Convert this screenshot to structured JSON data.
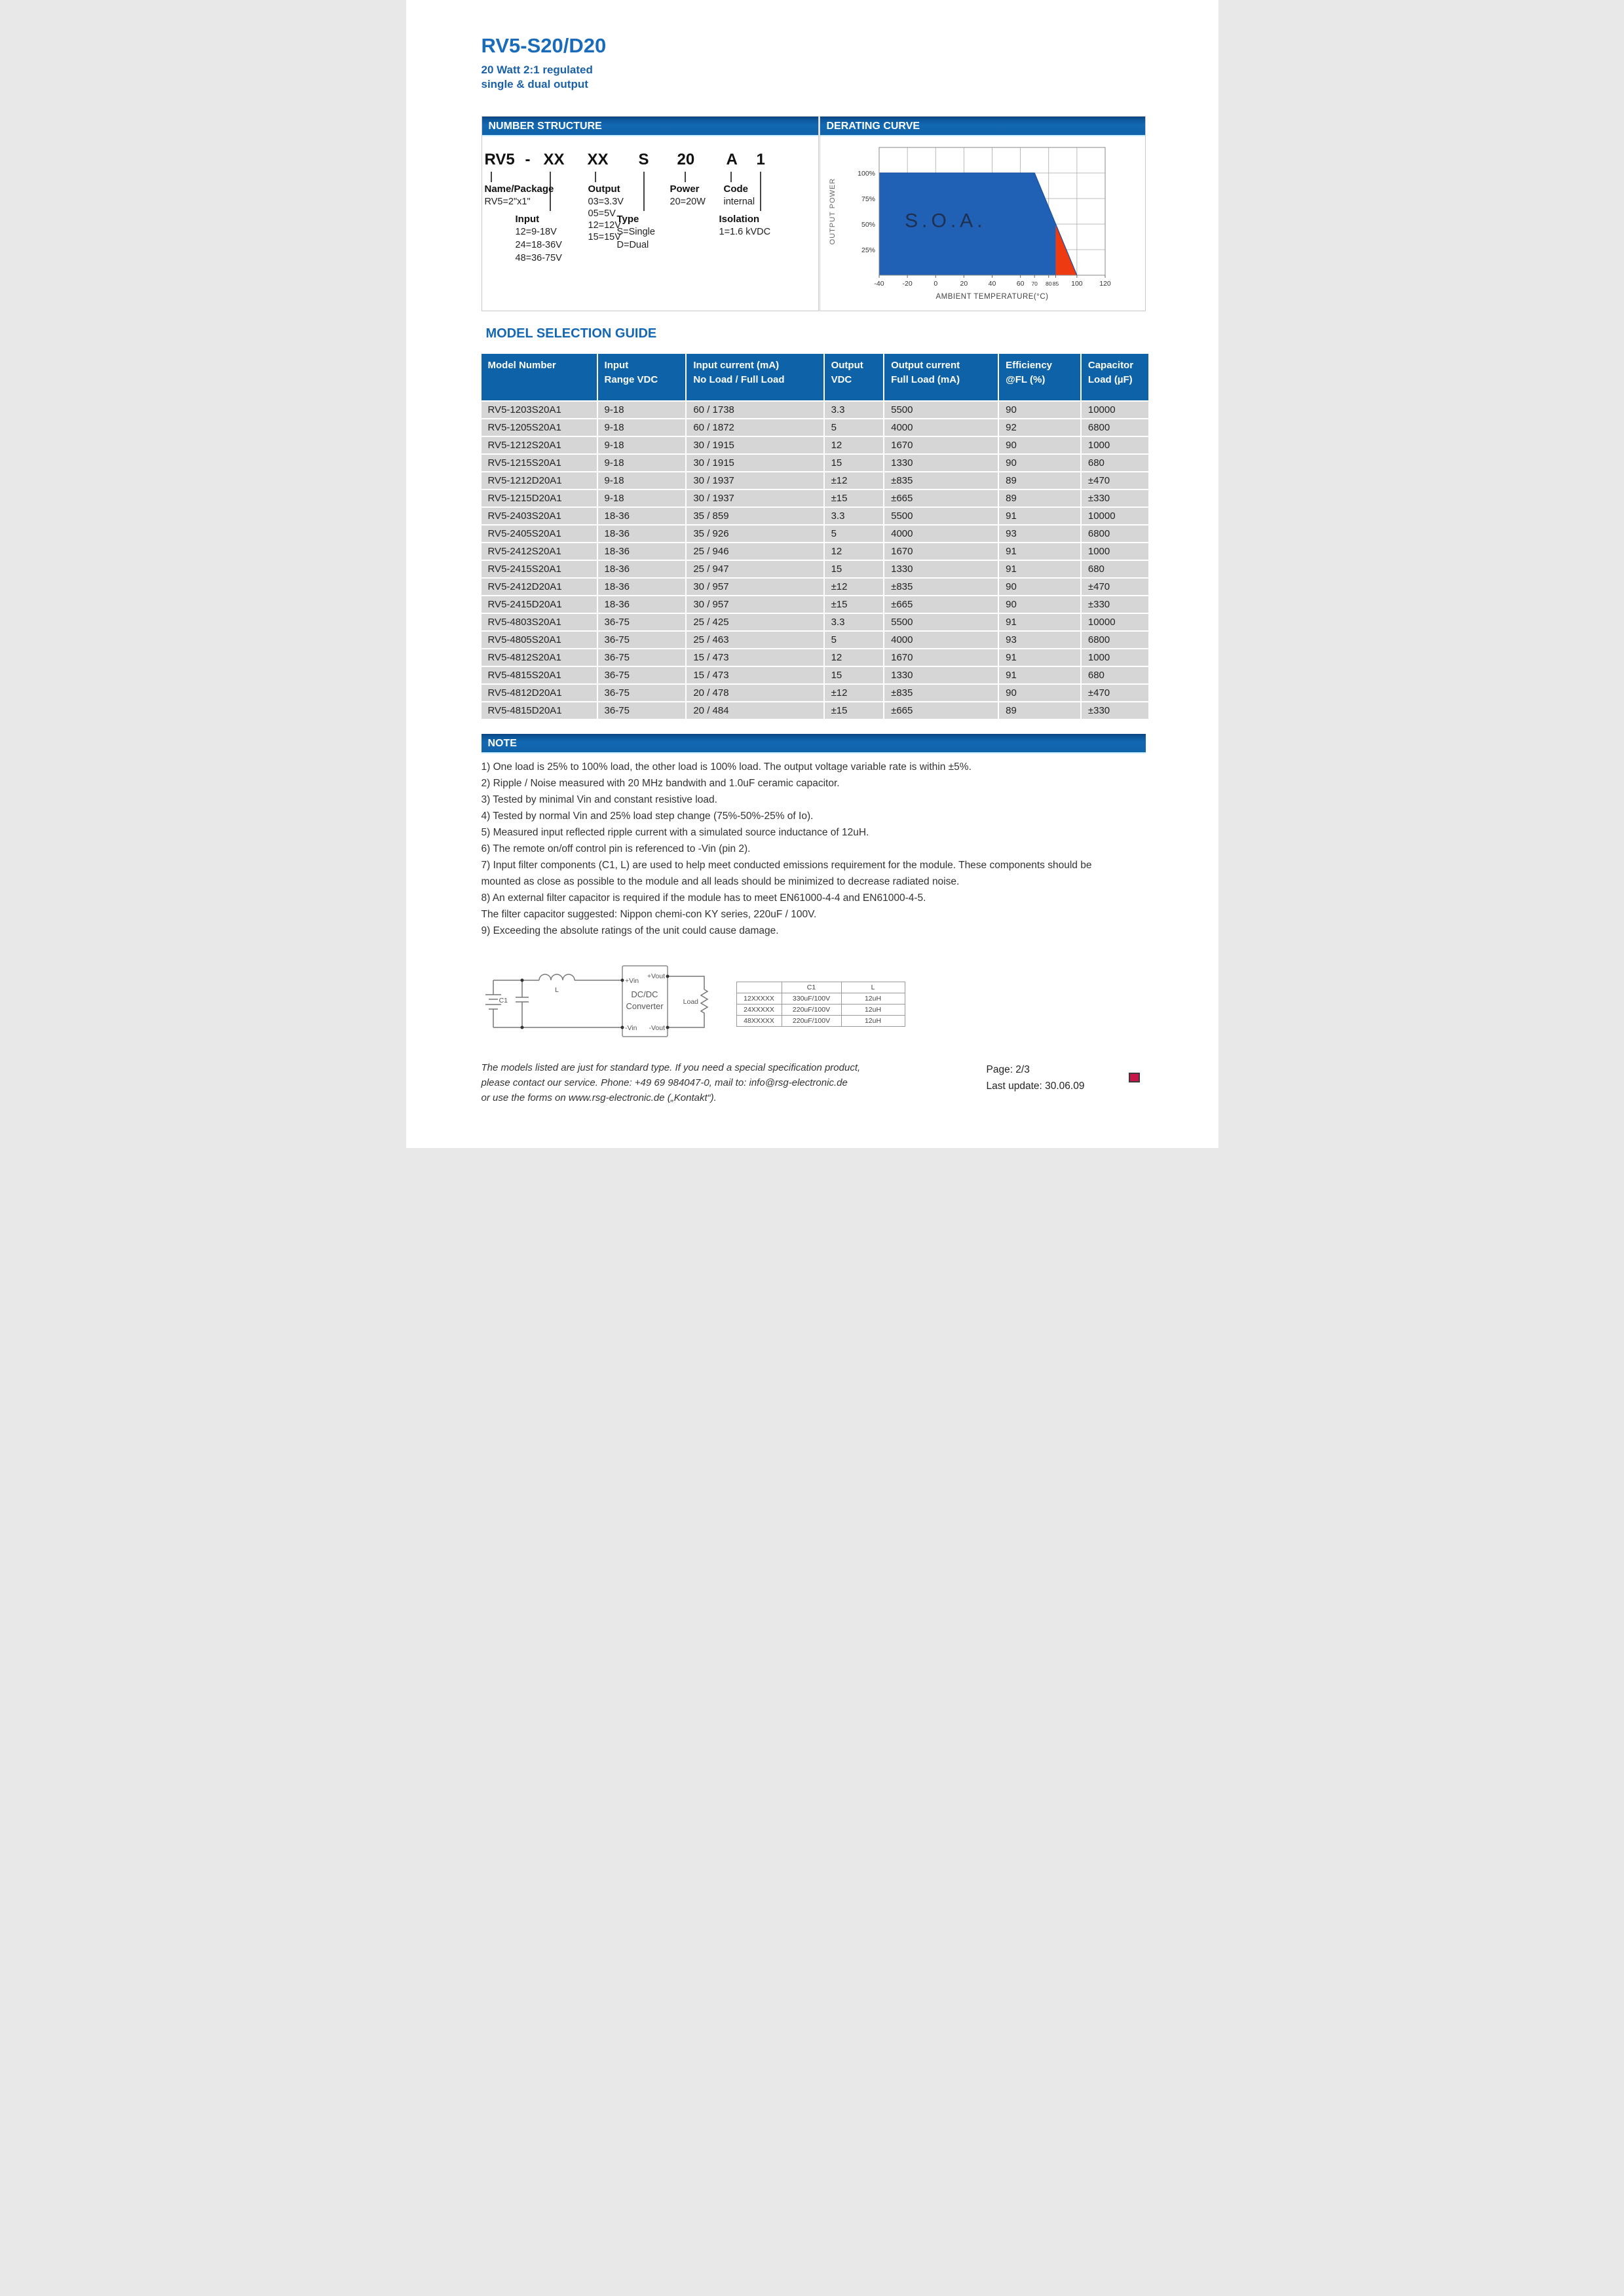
{
  "page": {
    "title": "RV5-S20/D20",
    "subtitle_line1": "20 Watt 2:1 regulated",
    "subtitle_line2": "single & dual output"
  },
  "colors": {
    "accent_blue": "#0e63a8",
    "soa_fill_blue": "#2061b5",
    "derate_red": "#ee3a10",
    "footer_square_red": "#c6164a"
  },
  "number_structure": {
    "heading": "NUMBER STRUCTURE",
    "segments": [
      "RV5",
      "-",
      "XX",
      "XX",
      "S",
      "20",
      "A",
      "1"
    ],
    "groups": {
      "name_package": {
        "label": "Name/Package",
        "values": [
          "RV5=2\"x1\""
        ]
      },
      "input": {
        "label": "Input",
        "values": [
          "12=9-18V",
          "24=18-36V",
          "48=36-75V"
        ]
      },
      "output": {
        "label": "Output",
        "values": [
          "03=3.3V",
          "05=5V",
          "12=12V",
          "15=15V"
        ]
      },
      "type": {
        "label": "Type",
        "values": [
          "S=Single",
          "D=Dual"
        ]
      },
      "power": {
        "label": "Power",
        "values": [
          "20=20W"
        ]
      },
      "code": {
        "label": "Code",
        "values": [
          "internal"
        ]
      },
      "isolation": {
        "label": "Isolation",
        "values": [
          "1=1.6 kVDC"
        ]
      }
    }
  },
  "derating": {
    "heading": "DERATING CURVE"
  },
  "chart_data": {
    "type": "area",
    "title": "",
    "xlabel": "AMBIENT TEMPERATURE(°C)",
    "ylabel": "OUTPUT POWER",
    "xlim": [
      -40,
      120
    ],
    "ylim": [
      0,
      125
    ],
    "grid": true,
    "x_gridlines": [
      -40,
      -20,
      0,
      20,
      40,
      60,
      80,
      100,
      120
    ],
    "y_gridlines": [
      0,
      25,
      50,
      75,
      100,
      125
    ],
    "x_tick_labels": [
      {
        "v": -40,
        "t": "-40"
      },
      {
        "v": -20,
        "t": "-20"
      },
      {
        "v": 0,
        "t": "0"
      },
      {
        "v": 20,
        "t": "20"
      },
      {
        "v": 40,
        "t": "40"
      },
      {
        "v": 60,
        "t": "60"
      },
      {
        "v": 70,
        "t": "70"
      },
      {
        "v": 80,
        "t": "80"
      },
      {
        "v": 85,
        "t": "85"
      },
      {
        "v": 100,
        "t": "100"
      },
      {
        "v": 120,
        "t": "120"
      }
    ],
    "y_tick_labels": [
      {
        "v": 25,
        "t": "25%"
      },
      {
        "v": 50,
        "t": "50%"
      },
      {
        "v": 75,
        "t": "75%"
      },
      {
        "v": 100,
        "t": "100%"
      }
    ],
    "series": [
      {
        "name": "max load boundary",
        "points": [
          [
            -40,
            100
          ],
          [
            70,
            100
          ],
          [
            85,
            50
          ],
          [
            100,
            0
          ]
        ]
      }
    ],
    "soa_region": [
      [
        -40,
        0
      ],
      [
        -40,
        100
      ],
      [
        70,
        100
      ],
      [
        85,
        50
      ],
      [
        85,
        0
      ]
    ],
    "derate_region": [
      [
        85,
        50
      ],
      [
        100,
        0
      ],
      [
        85,
        0
      ]
    ],
    "annotation": "S.O.A."
  },
  "model_guide": {
    "heading": "MODEL SELECTION GUIDE",
    "columns": [
      [
        "Model Number",
        ""
      ],
      [
        "Input",
        "Range VDC"
      ],
      [
        "Input current (mA)",
        "No Load / Full Load"
      ],
      [
        "Output",
        "VDC"
      ],
      [
        "Output current",
        "Full Load (mA)"
      ],
      [
        "Efficiency",
        "@FL (%)"
      ],
      [
        "Capacitor",
        "Load (µF)"
      ]
    ],
    "rows": [
      [
        "RV5-1203S20A1",
        "9-18",
        "60 / 1738",
        "3.3",
        "5500",
        "90",
        "10000"
      ],
      [
        "RV5-1205S20A1",
        "9-18",
        "60 / 1872",
        "5",
        "4000",
        "92",
        "6800"
      ],
      [
        "RV5-1212S20A1",
        "9-18",
        "30 / 1915",
        "12",
        "1670",
        "90",
        "1000"
      ],
      [
        "RV5-1215S20A1",
        "9-18",
        "30 / 1915",
        "15",
        "1330",
        "90",
        "680"
      ],
      [
        "RV5-1212D20A1",
        "9-18",
        "30 / 1937",
        "±12",
        "±835",
        "89",
        "±470"
      ],
      [
        "RV5-1215D20A1",
        "9-18",
        "30 / 1937",
        "±15",
        "±665",
        "89",
        "±330"
      ],
      [
        "RV5-2403S20A1",
        "18-36",
        "35 / 859",
        "3.3",
        "5500",
        "91",
        "10000"
      ],
      [
        "RV5-2405S20A1",
        "18-36",
        "35 / 926",
        "5",
        "4000",
        "93",
        "6800"
      ],
      [
        "RV5-2412S20A1",
        "18-36",
        "25 / 946",
        "12",
        "1670",
        "91",
        "1000"
      ],
      [
        "RV5-2415S20A1",
        "18-36",
        "25 / 947",
        "15",
        "1330",
        "91",
        "680"
      ],
      [
        "RV5-2412D20A1",
        "18-36",
        "30 / 957",
        "±12",
        "±835",
        "90",
        "±470"
      ],
      [
        "RV5-2415D20A1",
        "18-36",
        "30 / 957",
        "±15",
        "±665",
        "90",
        "±330"
      ],
      [
        "RV5-4803S20A1",
        "36-75",
        "25 / 425",
        "3.3",
        "5500",
        "91",
        "10000"
      ],
      [
        "RV5-4805S20A1",
        "36-75",
        "25 / 463",
        "5",
        "4000",
        "93",
        "6800"
      ],
      [
        "RV5-4812S20A1",
        "36-75",
        "15 / 473",
        "12",
        "1670",
        "91",
        "1000"
      ],
      [
        "RV5-4815S20A1",
        "36-75",
        "15 / 473",
        "15",
        "1330",
        "91",
        "680"
      ],
      [
        "RV5-4812D20A1",
        "36-75",
        "20 / 478",
        "±12",
        "±835",
        "90",
        "±470"
      ],
      [
        "RV5-4815D20A1",
        "36-75",
        "20 / 484",
        "±15",
        "±665",
        "89",
        "±330"
      ]
    ]
  },
  "note": {
    "heading": "NOTE",
    "items": [
      "1) One load is 25% to 100% load, the other load is 100% load. The output voltage variable rate is within ±5%.",
      "2) Ripple / Noise measured with 20 MHz bandwith and 1.0uF ceramic capacitor.",
      "3) Tested by minimal Vin and constant resistive load.",
      "4) Tested by normal Vin and 25% load step change (75%-50%-25% of Io).",
      "5) Measured input reflected ripple current with a simulated source inductance of 12uH.",
      "6) The remote on/off control pin is referenced to -Vin (pin 2).",
      "7) Input filter components (C1, L) are used to help meet conducted emissions requirement for the module. These components should be mounted as close as possible to the module and all leads should be minimized to decrease radiated noise.",
      "8) An external filter capacitor is required if the module has to meet EN61000-4-4 and EN61000-4-5.",
      "The filter capacitor suggested: Nippon chemi-con KY series, 220uF / 100V.",
      "9) Exceeding the absolute ratings of the unit could cause damage."
    ]
  },
  "application": {
    "labels": {
      "c1": "C1",
      "l": "L",
      "vin_pos": "+Vin",
      "vin_neg": "-Vin",
      "vout_pos": "+Vout",
      "vout_neg": "-Vout",
      "box_line1": "DC/DC",
      "box_line2": "Converter",
      "load": "Load"
    },
    "filter_table": {
      "headers": [
        "",
        "C1",
        "L"
      ],
      "rows": [
        [
          "12XXXXX",
          "330uF/100V",
          "12uH"
        ],
        [
          "24XXXXX",
          "220uF/100V",
          "12uH"
        ],
        [
          "48XXXXX",
          "220uF/100V",
          "12uH"
        ]
      ]
    }
  },
  "footer": {
    "lines": [
      "The models listed are just for standard type. If you need a special specification product,",
      "please contact our service. Phone: +49 69 984047-0, mail to: info@rsg-electronic.de",
      "or use the forms on www.rsg-electronic.de („Kontakt“)."
    ],
    "page": "Page: 2/3",
    "last_update": "Last update: 30.06.09"
  }
}
